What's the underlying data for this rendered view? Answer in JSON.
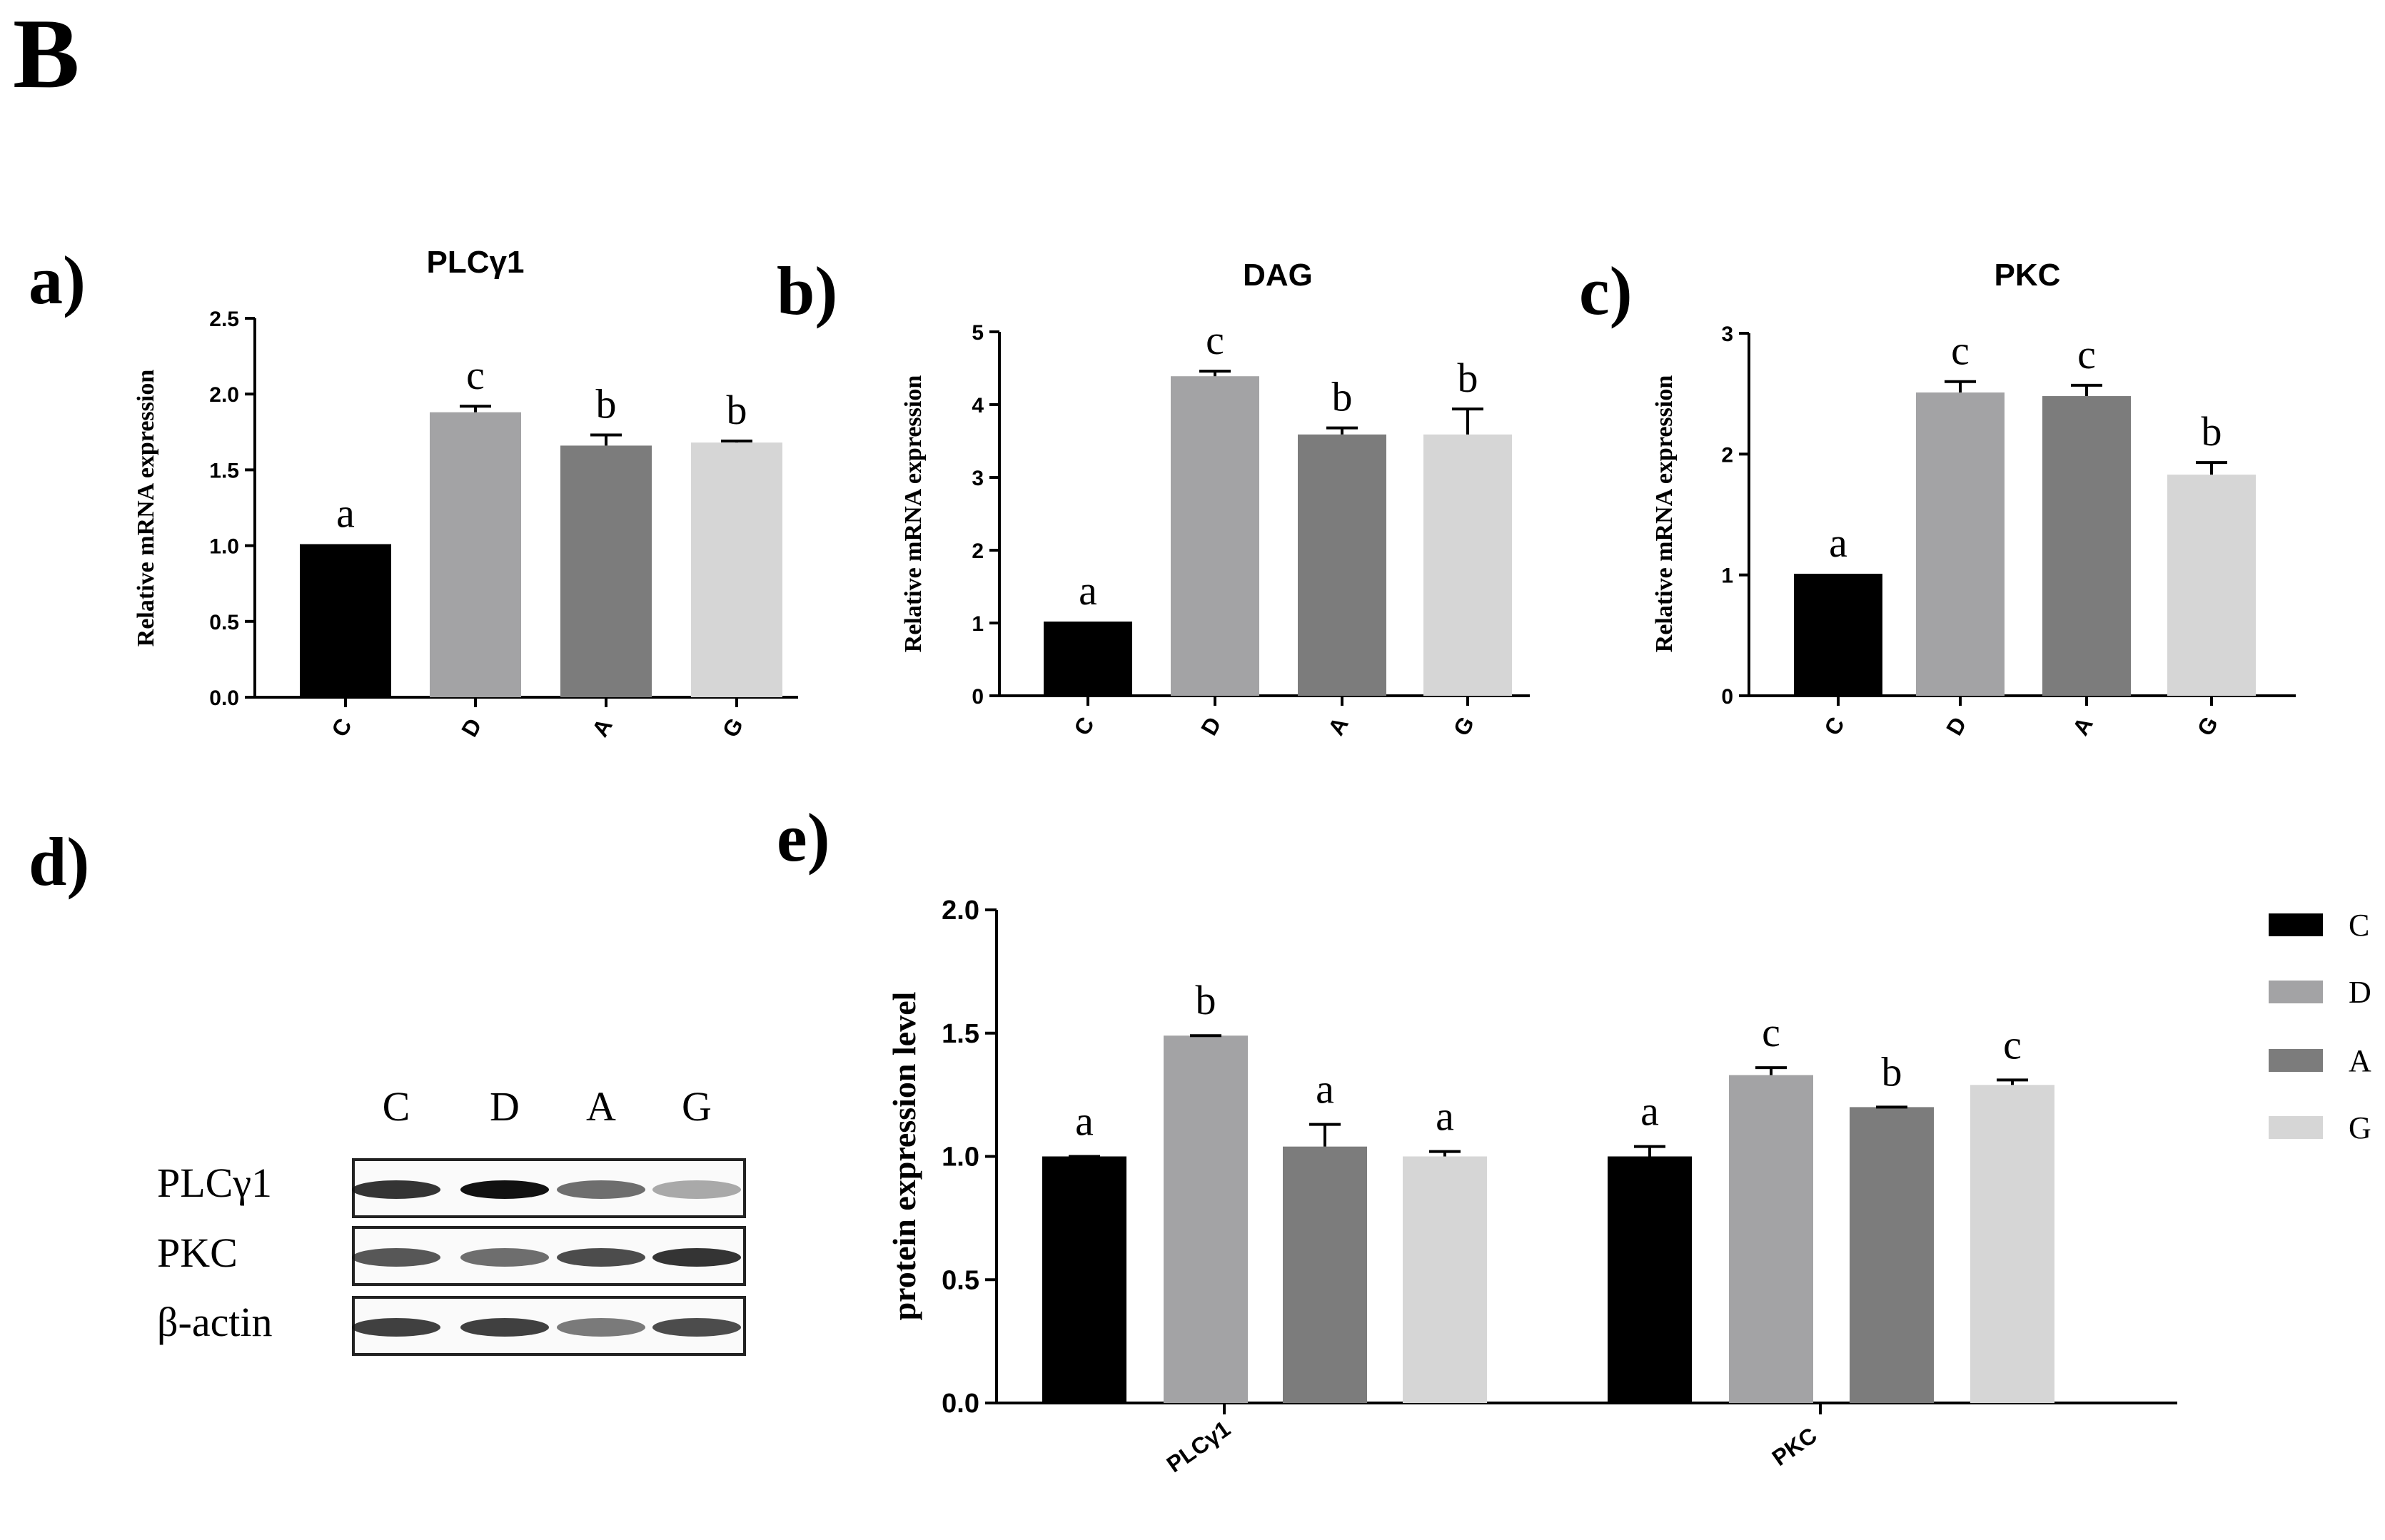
{
  "figure_label": "B",
  "colors": {
    "C": "#000000",
    "D": "#a3a3a5",
    "A": "#7c7c7c",
    "G": "#d6d6d6"
  },
  "chart_data": [
    {
      "id": "a",
      "panel_label": "a)",
      "type": "bar",
      "title": "PLCγ1",
      "ylabel": "Relative mRNA expression",
      "ylim": [
        0,
        2.5
      ],
      "yticks": [
        "0.0",
        "0.5",
        "1.0",
        "1.5",
        "2.0",
        "2.5"
      ],
      "categories": [
        "C",
        "D",
        "A",
        "G"
      ],
      "values": [
        1.01,
        1.88,
        1.66,
        1.68
      ],
      "errors": [
        0.0,
        0.04,
        0.07,
        0.01
      ],
      "significance": [
        "a",
        "c",
        "b",
        "b"
      ]
    },
    {
      "id": "b",
      "panel_label": "b)",
      "type": "bar",
      "title": "DAG",
      "ylabel": "Relative mRNA expression",
      "ylim": [
        0,
        5
      ],
      "yticks": [
        "0",
        "1",
        "2",
        "3",
        "4",
        "5"
      ],
      "categories": [
        "C",
        "D",
        "A",
        "G"
      ],
      "values": [
        1.02,
        4.39,
        3.59,
        3.59
      ],
      "errors": [
        0.0,
        0.07,
        0.09,
        0.35
      ],
      "significance": [
        "a",
        "c",
        "b",
        "b"
      ]
    },
    {
      "id": "c",
      "panel_label": "c)",
      "type": "bar",
      "title": "PKC",
      "ylabel": "Relative mRNA expression",
      "ylim": [
        0,
        3
      ],
      "yticks": [
        "0",
        "1",
        "2",
        "3"
      ],
      "categories": [
        "C",
        "D",
        "A",
        "G"
      ],
      "values": [
        1.01,
        2.51,
        2.48,
        1.83
      ],
      "errors": [
        0.0,
        0.09,
        0.09,
        0.1
      ],
      "significance": [
        "a",
        "c",
        "c",
        "b"
      ]
    },
    {
      "id": "e",
      "panel_label": "e)",
      "type": "bar",
      "ylabel": "protein expression level",
      "ylim": [
        0,
        2.0
      ],
      "yticks": [
        "0.0",
        "0.5",
        "1.0",
        "1.5",
        "2.0"
      ],
      "groups": [
        "PLCγ1",
        "PKC"
      ],
      "series": [
        {
          "name": "C",
          "values": [
            1.0,
            1.0
          ],
          "errors": [
            0.0,
            0.04
          ],
          "significance": [
            "a",
            "a"
          ]
        },
        {
          "name": "D",
          "values": [
            1.49,
            1.33
          ],
          "errors": [
            0.0,
            0.03
          ],
          "significance": [
            "b",
            "c"
          ]
        },
        {
          "name": "A",
          "values": [
            1.04,
            1.2
          ],
          "errors": [
            0.09,
            0.0
          ],
          "significance": [
            "a",
            "b"
          ]
        },
        {
          "name": "G",
          "values": [
            1.0,
            1.29
          ],
          "errors": [
            0.02,
            0.02
          ],
          "significance": [
            "a",
            "c"
          ]
        }
      ],
      "legend": [
        "C",
        "D",
        "A",
        "G"
      ]
    }
  ],
  "western_blot": {
    "panel_label": "d)",
    "lanes": [
      "C",
      "D",
      "A",
      "G"
    ],
    "rows": [
      "PLCγ1",
      "PKC",
      "β-actin"
    ]
  }
}
